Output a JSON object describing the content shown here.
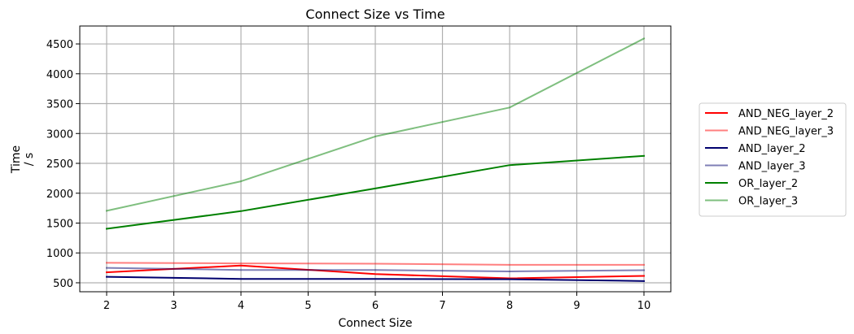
{
  "chart_data": {
    "type": "line",
    "title": "Connect Size vs Time",
    "xlabel": "Connect Size",
    "ylabel_lines": [
      "Time",
      "/ s"
    ],
    "x": [
      2,
      4,
      6,
      8,
      10
    ],
    "xticks": [
      2,
      3,
      4,
      5,
      6,
      7,
      8,
      9,
      10
    ],
    "yticks": [
      500,
      1000,
      1500,
      2000,
      2500,
      3000,
      3500,
      4000,
      4500
    ],
    "xlim": [
      1.6,
      10.4
    ],
    "ylim": [
      350,
      4800
    ],
    "grid": true,
    "legend_position": "right",
    "series": [
      {
        "name": "AND_NEG_layer_2",
        "color": "#ff0000",
        "opacity": 1.0,
        "values": [
          675,
          790,
          645,
          575,
          615
        ]
      },
      {
        "name": "AND_NEG_layer_3",
        "color": "#ff0000",
        "opacity": 0.5,
        "values": [
          835,
          825,
          820,
          800,
          800
        ]
      },
      {
        "name": "AND_layer_2",
        "color": "#00006e",
        "opacity": 1.0,
        "values": [
          600,
          565,
          565,
          560,
          530
        ]
      },
      {
        "name": "AND_layer_3",
        "color": "#00006e",
        "opacity": 0.5,
        "values": [
          750,
          715,
          715,
          690,
          710
        ]
      },
      {
        "name": "OR_layer_2",
        "color": "#008000",
        "opacity": 1.0,
        "values": [
          1405,
          1700,
          2080,
          2470,
          2625
        ]
      },
      {
        "name": "OR_layer_3",
        "color": "#008000",
        "opacity": 0.5,
        "values": [
          1705,
          2200,
          2950,
          3435,
          4590
        ]
      }
    ]
  }
}
